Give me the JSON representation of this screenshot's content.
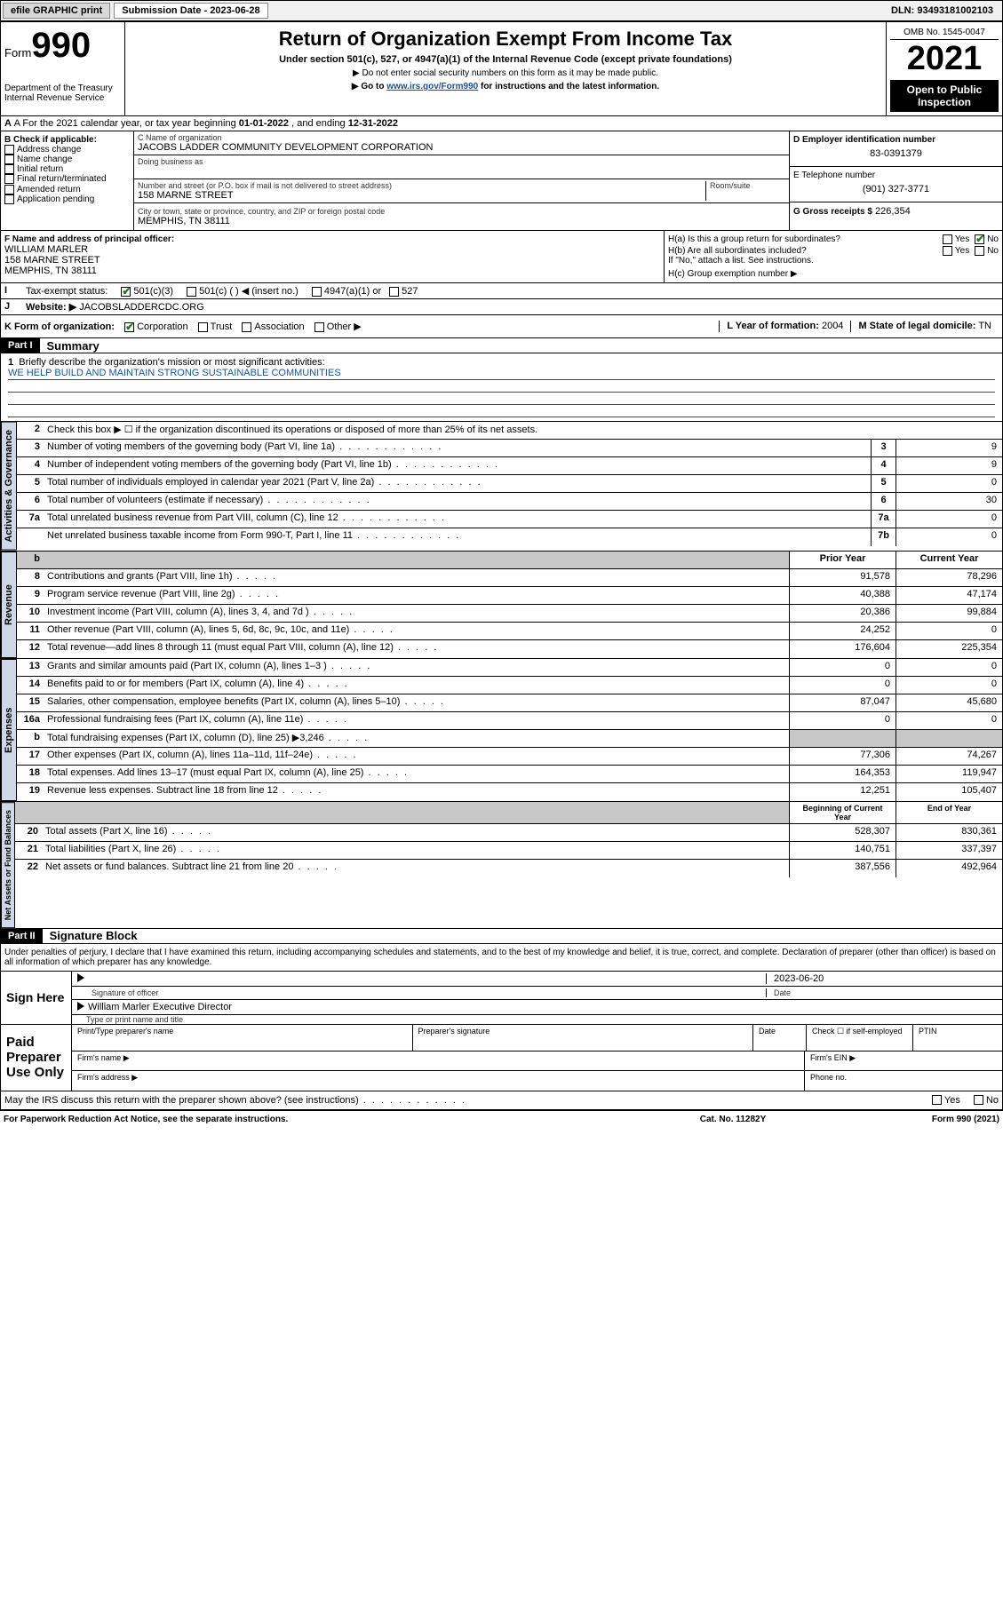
{
  "topbar": {
    "efile_label": "efile GRAPHIC print",
    "submission_label": "Submission Date - 2023-06-28",
    "dln": "DLN: 93493181002103"
  },
  "header": {
    "form_word": "Form",
    "form_num": "990",
    "dept": "Department of the Treasury",
    "irs": "Internal Revenue Service",
    "title": "Return of Organization Exempt From Income Tax",
    "subtitle": "Under section 501(c), 527, or 4947(a)(1) of the Internal Revenue Code (except private foundations)",
    "note1": "▶ Do not enter social security numbers on this form as it may be made public.",
    "note2_pre": "▶ Go to ",
    "note2_link": "www.irs.gov/Form990",
    "note2_post": " for instructions and the latest information.",
    "omb": "OMB No. 1545-0047",
    "year": "2021",
    "inspect1": "Open to Public",
    "inspect2": "Inspection"
  },
  "a_line": {
    "prefix": "A For the 2021 calendar year, or tax year beginning ",
    "begin": "01-01-2022",
    "mid": " , and ending ",
    "end": "12-31-2022"
  },
  "b": {
    "hdr": "B Check if applicable:",
    "items": [
      "Address change",
      "Name change",
      "Initial return",
      "Final return/terminated",
      "Amended return",
      "Application pending"
    ]
  },
  "c": {
    "name_label": "C Name of organization",
    "name": "JACOBS LADDER COMMUNITY DEVELOPMENT CORPORATION",
    "dba_label": "Doing business as",
    "street_label": "Number and street (or P.O. box if mail is not delivered to street address)",
    "room_label": "Room/suite",
    "street": "158 MARNE STREET",
    "city_label": "City or town, state or province, country, and ZIP or foreign postal code",
    "city": "MEMPHIS, TN  38111"
  },
  "d": {
    "label": "D Employer identification number",
    "val": "83-0391379"
  },
  "e": {
    "label": "E Telephone number",
    "val": "(901) 327-3771"
  },
  "g": {
    "label": "G Gross receipts $",
    "val": "226,354"
  },
  "f": {
    "label": "F Name and address of principal officer:",
    "name": "WILLIAM MARLER",
    "street": "158 MARNE STREET",
    "city": "MEMPHIS, TN  38111"
  },
  "h": {
    "a_label": "H(a)  Is this a group return for subordinates?",
    "b_label": "H(b)  Are all subordinates included?",
    "b_note": "If \"No,\" attach a list. See instructions.",
    "c_label": "H(c)  Group exemption number ▶",
    "yes": "Yes",
    "no": "No"
  },
  "i": {
    "label": "Tax-exempt status:",
    "o1": "501(c)(3)",
    "o2": "501(c) (  ) ◀ (insert no.)",
    "o3": "4947(a)(1) or",
    "o4": "527"
  },
  "j": {
    "label": "Website: ▶",
    "val": "JACOBSLADDERCDC.ORG"
  },
  "k": {
    "label": "K Form of organization:",
    "o1": "Corporation",
    "o2": "Trust",
    "o3": "Association",
    "o4": "Other ▶"
  },
  "l": {
    "label": "L Year of formation:",
    "val": "2004"
  },
  "m": {
    "label": "M State of legal domicile:",
    "val": "TN"
  },
  "part1": {
    "tag": "Part I",
    "title": "Summary"
  },
  "mission": {
    "num": "1",
    "q": "Briefly describe the organization's mission or most significant activities:",
    "text": "WE HELP BUILD AND MAINTAIN STRONG SUSTAINABLE COMMUNITIES"
  },
  "gov": {
    "tab": "Activities & Governance",
    "l2": "Check this box ▶ ☐  if the organization discontinued its operations or disposed of more than 25% of its net assets.",
    "rows": [
      {
        "n": "3",
        "t": "Number of voting members of the governing body (Part VI, line 1a)",
        "box": "3",
        "v": "9"
      },
      {
        "n": "4",
        "t": "Number of independent voting members of the governing body (Part VI, line 1b)",
        "box": "4",
        "v": "9"
      },
      {
        "n": "5",
        "t": "Total number of individuals employed in calendar year 2021 (Part V, line 2a)",
        "box": "5",
        "v": "0"
      },
      {
        "n": "6",
        "t": "Total number of volunteers (estimate if necessary)",
        "box": "6",
        "v": "30"
      },
      {
        "n": "7a",
        "t": "Total unrelated business revenue from Part VIII, column (C), line 12",
        "box": "7a",
        "v": "0"
      },
      {
        "n": "",
        "t": "Net unrelated business taxable income from Form 990-T, Part I, line 11",
        "box": "7b",
        "v": "0"
      }
    ]
  },
  "rev": {
    "tab": "Revenue",
    "hdr_prior": "Prior Year",
    "hdr_curr": "Current Year",
    "rows": [
      {
        "n": "8",
        "t": "Contributions and grants (Part VIII, line 1h)",
        "p": "91,578",
        "c": "78,296"
      },
      {
        "n": "9",
        "t": "Program service revenue (Part VIII, line 2g)",
        "p": "40,388",
        "c": "47,174"
      },
      {
        "n": "10",
        "t": "Investment income (Part VIII, column (A), lines 3, 4, and 7d )",
        "p": "20,386",
        "c": "99,884"
      },
      {
        "n": "11",
        "t": "Other revenue (Part VIII, column (A), lines 5, 6d, 8c, 9c, 10c, and 11e)",
        "p": "24,252",
        "c": "0"
      },
      {
        "n": "12",
        "t": "Total revenue—add lines 8 through 11 (must equal Part VIII, column (A), line 12)",
        "p": "176,604",
        "c": "225,354"
      }
    ]
  },
  "exp": {
    "tab": "Expenses",
    "rows": [
      {
        "n": "13",
        "t": "Grants and similar amounts paid (Part IX, column (A), lines 1–3 )",
        "p": "0",
        "c": "0"
      },
      {
        "n": "14",
        "t": "Benefits paid to or for members (Part IX, column (A), line 4)",
        "p": "0",
        "c": "0"
      },
      {
        "n": "15",
        "t": "Salaries, other compensation, employee benefits (Part IX, column (A), lines 5–10)",
        "p": "87,047",
        "c": "45,680"
      },
      {
        "n": "16a",
        "t": "Professional fundraising fees (Part IX, column (A), line 11e)",
        "p": "0",
        "c": "0"
      },
      {
        "n": "b",
        "t": "Total fundraising expenses (Part IX, column (D), line 25) ▶3,246",
        "p": "",
        "c": "",
        "shade": true
      },
      {
        "n": "17",
        "t": "Other expenses (Part IX, column (A), lines 11a–11d, 11f–24e)",
        "p": "77,306",
        "c": "74,267"
      },
      {
        "n": "18",
        "t": "Total expenses. Add lines 13–17 (must equal Part IX, column (A), line 25)",
        "p": "164,353",
        "c": "119,947"
      },
      {
        "n": "19",
        "t": "Revenue less expenses. Subtract line 18 from line 12",
        "p": "12,251",
        "c": "105,407"
      }
    ]
  },
  "net": {
    "tab": "Net Assets or Fund Balances",
    "hdr_beg": "Beginning of Current Year",
    "hdr_end": "End of Year",
    "rows": [
      {
        "n": "20",
        "t": "Total assets (Part X, line 16)",
        "p": "528,307",
        "c": "830,361"
      },
      {
        "n": "21",
        "t": "Total liabilities (Part X, line 26)",
        "p": "140,751",
        "c": "337,397"
      },
      {
        "n": "22",
        "t": "Net assets or fund balances. Subtract line 21 from line 20",
        "p": "387,556",
        "c": "492,964"
      }
    ]
  },
  "part2": {
    "tag": "Part II",
    "title": "Signature Block"
  },
  "sig": {
    "decl": "Under penalties of perjury, I declare that I have examined this return, including accompanying schedules and statements, and to the best of my knowledge and belief, it is true, correct, and complete. Declaration of preparer (other than officer) is based on all information of which preparer has any knowledge.",
    "sign_here": "Sign Here",
    "sig_officer": "Signature of officer",
    "date": "Date",
    "date_val": "2023-06-20",
    "name_title": "William Marler  Executive Director",
    "name_title_label": "Type or print name and title",
    "paid": "Paid Preparer Use Only",
    "p_name": "Print/Type preparer's name",
    "p_sig": "Preparer's signature",
    "p_date": "Date",
    "p_check": "Check ☐ if self-employed",
    "p_ptin": "PTIN",
    "firm_name": "Firm's name  ▶",
    "firm_ein": "Firm's EIN ▶",
    "firm_addr": "Firm's address ▶",
    "firm_phone": "Phone no.",
    "discuss": "May the IRS discuss this return with the preparer shown above? (see instructions)",
    "yes": "Yes",
    "no": "No"
  },
  "footer": {
    "l": "For Paperwork Reduction Act Notice, see the separate instructions.",
    "m": "Cat. No. 11282Y",
    "r": "Form 990 (2021)"
  }
}
